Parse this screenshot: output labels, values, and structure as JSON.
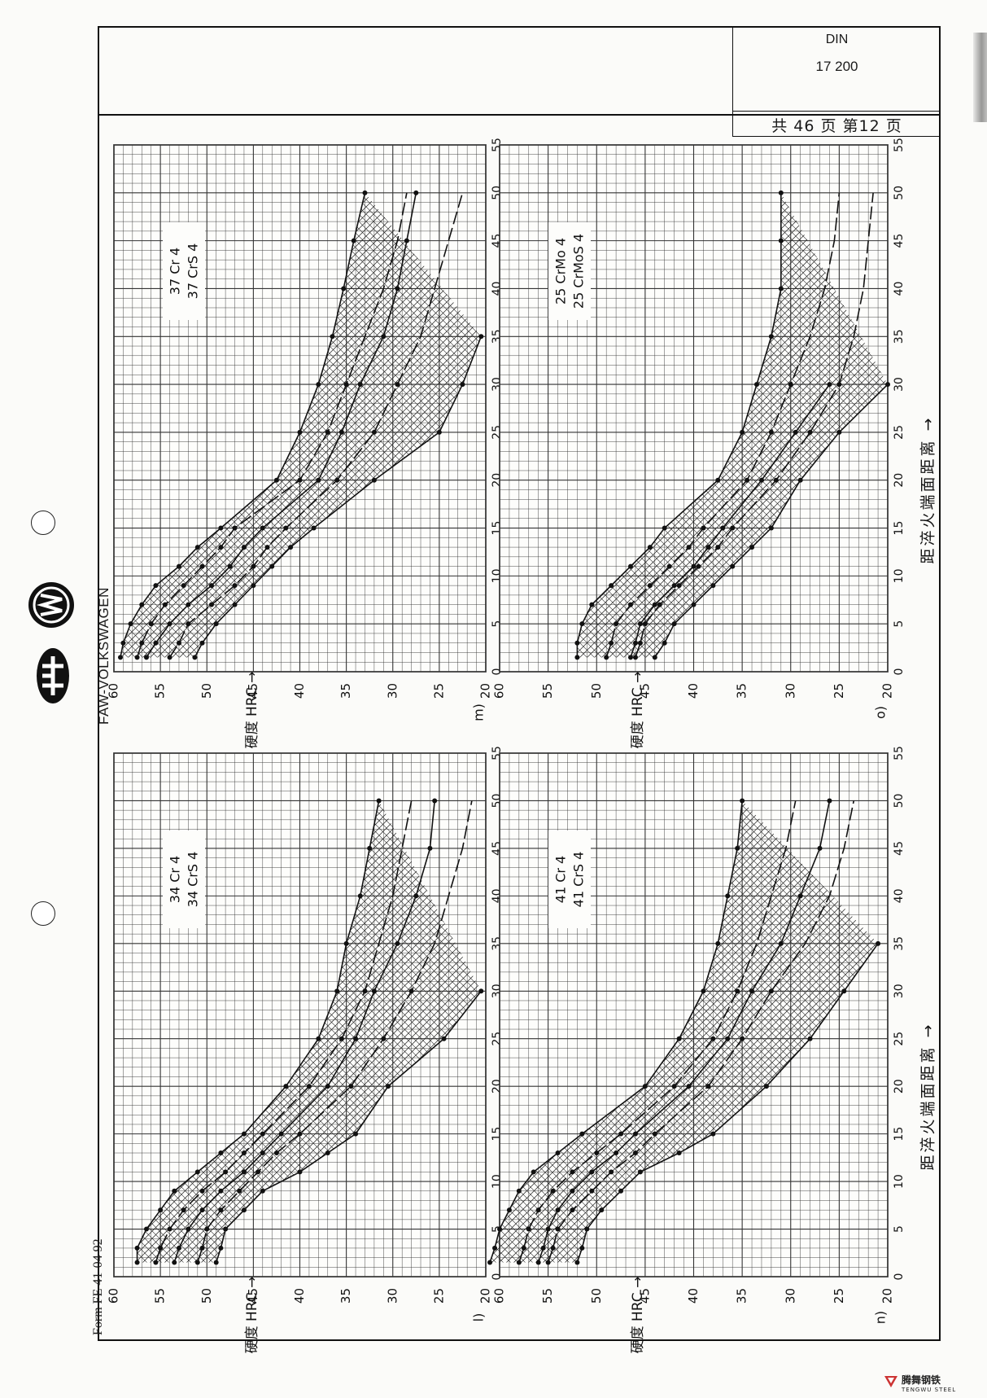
{
  "header": {
    "standard_label": "DIN",
    "standard_number": "17 200",
    "page_info": "共 46 页 第12 页",
    "brand": "FAW-VOLKSWAGEN",
    "form_number": "Form FE 41-04 92"
  },
  "footer": {
    "brand_cn": "腾舞钢铁",
    "brand_en": "TENGWU STEEL"
  },
  "axis": {
    "x_label": "距淬火端面距离 →",
    "y_label": "硬度 HRC →",
    "x_ticks": [
      "0",
      "5",
      "10",
      "15",
      "20",
      "25",
      "30",
      "35",
      "40",
      "45",
      "50",
      "55"
    ],
    "y_ticks": [
      "60",
      "55",
      "50",
      "45",
      "40",
      "35",
      "30",
      "25",
      "20"
    ]
  },
  "chart_data": [
    {
      "type": "line",
      "panel": "m)",
      "steel": [
        "37 Cr 4",
        "37 CrS 4"
      ],
      "xlim": [
        0,
        55
      ],
      "ylim": [
        20,
        60
      ],
      "series": [
        {
          "x": [
            1.5,
            3,
            5,
            7,
            9,
            11,
            13,
            15,
            20,
            25,
            30,
            35,
            40,
            45,
            50
          ],
          "values": [
            59.3,
            59,
            58.2,
            57,
            55.5,
            53,
            51,
            48.5,
            42.5,
            40,
            38,
            36.5,
            35.3,
            34.2,
            33
          ]
        },
        {
          "x": [
            1.5,
            3,
            5,
            7,
            9,
            11,
            13,
            15,
            20,
            25,
            30,
            35,
            40,
            45,
            50
          ],
          "values": [
            57.5,
            57,
            56,
            54.5,
            52.5,
            50.5,
            48.5,
            47,
            40,
            37,
            35,
            33,
            31,
            29.5,
            28.5
          ]
        },
        {
          "x": [
            1.5,
            3,
            5,
            7,
            9,
            11,
            13,
            15,
            20,
            25,
            30,
            35,
            40,
            45,
            50
          ],
          "values": [
            56.5,
            55.5,
            54,
            52,
            49.5,
            47.5,
            46,
            44,
            38,
            35.5,
            33.5,
            31,
            29.5,
            28.5,
            27.5
          ]
        },
        {
          "x": [
            1.5,
            3,
            5,
            7,
            9,
            11,
            13,
            15,
            20,
            25,
            30,
            35,
            40,
            45,
            50
          ],
          "values": [
            54,
            53,
            52,
            49.5,
            47,
            45,
            43.5,
            41.5,
            36,
            32,
            29.5,
            27,
            25.5,
            24,
            22.5
          ]
        },
        {
          "x": [
            1.5,
            3,
            5,
            7,
            9,
            11,
            13,
            15,
            20,
            25,
            30,
            35
          ],
          "values": [
            51.3,
            50.5,
            49,
            47,
            45,
            43,
            41,
            38.5,
            32,
            25,
            22.5,
            20.5
          ]
        }
      ]
    },
    {
      "type": "line",
      "panel": "o)",
      "steel": [
        "25 CrMo 4",
        "25 CrMoS 4"
      ],
      "xlim": [
        0,
        55
      ],
      "ylim": [
        20,
        60
      ],
      "series": [
        {
          "x": [
            1.5,
            3,
            5,
            7,
            9,
            11,
            13,
            15,
            20,
            25,
            30,
            35,
            40,
            45,
            50
          ],
          "values": [
            52,
            52,
            51.5,
            50.5,
            48.5,
            46.5,
            44.5,
            43,
            37.5,
            35,
            33.5,
            32,
            31,
            31,
            31
          ]
        },
        {
          "x": [
            1.5,
            3,
            5,
            7,
            9,
            11,
            13,
            15,
            20,
            25,
            30,
            35,
            40,
            45,
            50
          ],
          "values": [
            49,
            48.5,
            48,
            46.5,
            44.5,
            42.5,
            40.5,
            39,
            34.5,
            32,
            30,
            28,
            26.5,
            25.5,
            25
          ]
        },
        {
          "x": [
            1.5,
            3,
            5,
            7,
            9,
            11,
            13,
            15,
            20,
            25,
            30
          ],
          "values": [
            46.5,
            46,
            45.5,
            44,
            42,
            40,
            38.5,
            37,
            33,
            29.5,
            26
          ]
        },
        {
          "x": [
            1.5,
            3,
            5,
            7,
            9,
            11,
            13,
            15,
            20,
            25,
            30,
            35,
            40,
            45,
            50
          ],
          "values": [
            46,
            45.5,
            45,
            43.5,
            41.5,
            39.5,
            37.5,
            36,
            31.5,
            28,
            25,
            23.5,
            22.5,
            22,
            21.5
          ]
        },
        {
          "x": [
            1.5,
            3,
            5,
            7,
            9,
            11,
            13,
            15,
            20,
            25,
            30
          ],
          "values": [
            44,
            43,
            42,
            40,
            38,
            36,
            34,
            32,
            29,
            25,
            20
          ]
        }
      ]
    },
    {
      "type": "line",
      "panel": "l)",
      "steel": [
        "34 Cr 4",
        "34 CrS 4"
      ],
      "xlim": [
        0,
        55
      ],
      "ylim": [
        20,
        60
      ],
      "series": [
        {
          "x": [
            1.5,
            3,
            5,
            7,
            9,
            11,
            13,
            15,
            20,
            25,
            30,
            35,
            40,
            45,
            50
          ],
          "values": [
            57.5,
            57.5,
            56.5,
            55,
            53.5,
            51,
            48.5,
            46,
            41.5,
            38,
            36,
            35,
            33.5,
            32.5,
            31.5
          ]
        },
        {
          "x": [
            1.5,
            3,
            5,
            7,
            9,
            11,
            13,
            15,
            20,
            25,
            30,
            35,
            40,
            45,
            50
          ],
          "values": [
            55.5,
            55,
            54,
            52.5,
            50.5,
            48,
            46,
            44,
            39,
            35.5,
            33,
            31.5,
            30,
            29,
            28
          ]
        },
        {
          "x": [
            1.5,
            3,
            5,
            7,
            9,
            11,
            13,
            15,
            20,
            25,
            30,
            35,
            40,
            45,
            50
          ],
          "values": [
            53.5,
            53,
            52,
            50.5,
            48.5,
            46,
            44,
            42,
            37,
            34,
            32,
            29.5,
            27.5,
            26,
            25.5
          ]
        },
        {
          "x": [
            1.5,
            3,
            5,
            7,
            9,
            11,
            13,
            15,
            20,
            25,
            30,
            35,
            40,
            45,
            50
          ],
          "values": [
            51,
            50.5,
            50,
            48.5,
            46.5,
            44.5,
            42.5,
            40,
            34.5,
            31,
            28,
            25.5,
            24,
            22.5,
            21.5
          ]
        },
        {
          "x": [
            1.5,
            3,
            5,
            7,
            9,
            11,
            13,
            15,
            20,
            25,
            30
          ],
          "values": [
            49,
            48.5,
            48,
            46,
            44,
            40,
            37,
            34,
            30.5,
            24.5,
            20.5
          ]
        }
      ]
    },
    {
      "type": "line",
      "panel": "n)",
      "steel": [
        "41 Cr 4",
        "41 CrS 4"
      ],
      "xlim": [
        0,
        55
      ],
      "ylim": [
        20,
        60
      ],
      "series": [
        {
          "x": [
            1.5,
            3,
            5,
            7,
            9,
            11,
            13,
            15,
            20,
            25,
            30,
            35,
            40,
            45,
            50
          ],
          "values": [
            61,
            60.5,
            60,
            59,
            58,
            56.5,
            54,
            51.5,
            45,
            41.5,
            39,
            37.5,
            36.5,
            35.5,
            35
          ]
        },
        {
          "x": [
            1.5,
            3,
            5,
            7,
            9,
            11,
            13,
            15,
            20,
            25,
            30,
            35,
            40,
            45,
            50
          ],
          "values": [
            58,
            57.5,
            57,
            56,
            54.5,
            52.5,
            50,
            47.5,
            42,
            38,
            35.5,
            33.5,
            32,
            30.5,
            29.5
          ]
        },
        {
          "x": [
            1.5,
            3,
            5,
            7,
            9,
            11,
            13,
            15,
            20,
            25,
            30,
            35,
            40,
            45,
            50
          ],
          "values": [
            56,
            55.5,
            55,
            54,
            52.5,
            50.5,
            48,
            46,
            40.5,
            36.5,
            34,
            31,
            29,
            27,
            26
          ]
        },
        {
          "x": [
            1.5,
            3,
            5,
            7,
            9,
            11,
            13,
            15,
            20,
            25,
            30,
            35,
            40,
            45,
            50
          ],
          "values": [
            55,
            54.5,
            54,
            52.5,
            50.5,
            48.5,
            46,
            44,
            38.5,
            35,
            32,
            28.5,
            26,
            24.5,
            23.5
          ]
        },
        {
          "x": [
            1.5,
            3,
            5,
            7,
            9,
            11,
            13,
            15,
            20,
            25,
            30,
            35
          ],
          "values": [
            52,
            51.5,
            51,
            49.5,
            47.5,
            45.5,
            41.5,
            38,
            32.5,
            28,
            24.5,
            21
          ]
        }
      ]
    }
  ]
}
